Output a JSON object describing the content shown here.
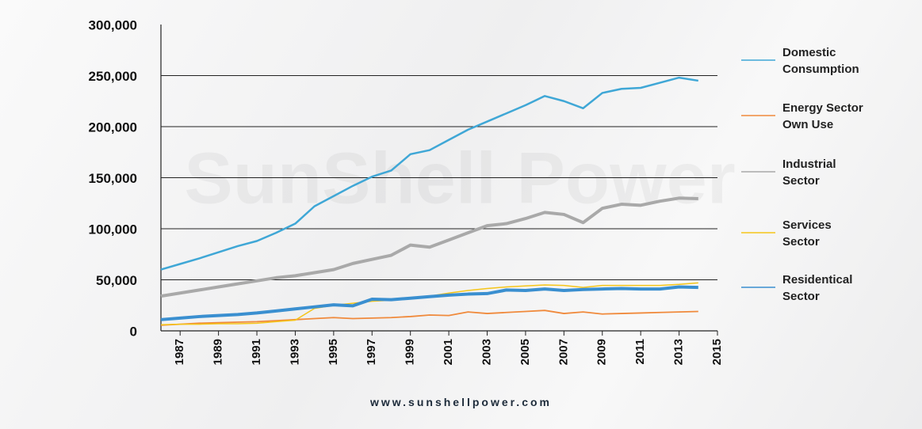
{
  "chart_data": {
    "type": "line",
    "watermark": "SunShell Power",
    "footer": "www.sunshellpower.com",
    "x": [
      1986,
      1987,
      1988,
      1989,
      1990,
      1991,
      1992,
      1993,
      1994,
      1995,
      1996,
      1997,
      1998,
      1999,
      2000,
      2001,
      2002,
      2003,
      2004,
      2005,
      2006,
      2007,
      2008,
      2009,
      2010,
      2011,
      2012,
      2013,
      2014
    ],
    "series": [
      {
        "name": "Domestic Consumption",
        "color": "#3fa7d6",
        "width": 2.5,
        "values": [
          60000,
          65500,
          71000,
          77000,
          83000,
          88000,
          96000,
          105000,
          122000,
          132000,
          142000,
          151000,
          157000,
          173000,
          177000,
          187000,
          197000,
          205000,
          213000,
          221000,
          230000,
          225000,
          218000,
          233000,
          237000,
          238000,
          243000,
          248000,
          245000
        ]
      },
      {
        "name": "Energy Sector Own Use",
        "color": "#f08a3c",
        "width": 1.8,
        "values": [
          5500,
          6500,
          7500,
          8000,
          8500,
          9000,
          10000,
          11000,
          12000,
          13000,
          12000,
          12500,
          13000,
          14000,
          15500,
          15000,
          18500,
          17000,
          18000,
          19000,
          20000,
          17000,
          18500,
          16500,
          17000,
          17500,
          18000,
          18500,
          19000
        ]
      },
      {
        "name": "Industrial Sector",
        "color": "#a9a9a9",
        "width": 4,
        "values": [
          34000,
          37000,
          40000,
          43000,
          46000,
          49000,
          52000,
          54000,
          57000,
          60000,
          66000,
          70000,
          74000,
          84000,
          82000,
          89000,
          96000,
          103000,
          105000,
          110000,
          116000,
          114000,
          106000,
          120000,
          124000,
          123000,
          127000,
          130000,
          129500
        ]
      },
      {
        "name": "Services Sector",
        "color": "#f5c518",
        "width": 1.5,
        "values": [
          6000,
          6500,
          6500,
          7000,
          7000,
          7500,
          9000,
          10500,
          22000,
          25000,
          27000,
          29000,
          30000,
          32000,
          34000,
          37000,
          39500,
          41500,
          43000,
          44000,
          45000,
          44500,
          42500,
          44500,
          44500,
          44500,
          44500,
          45500,
          47000
        ]
      },
      {
        "name": "Residentical Sector",
        "color": "#3a8fd0",
        "width": 4,
        "values": [
          11000,
          12500,
          14000,
          15000,
          16000,
          17500,
          19500,
          21500,
          23500,
          25500,
          24500,
          31000,
          30500,
          32000,
          33500,
          35000,
          36000,
          36500,
          40000,
          39500,
          41000,
          39500,
          40500,
          41000,
          41500,
          41000,
          41000,
          43000,
          42500
        ]
      }
    ],
    "xlim": [
      1986,
      2015
    ],
    "xticks": [
      1987,
      1989,
      1991,
      1993,
      1995,
      1997,
      1999,
      2001,
      2003,
      2005,
      2007,
      2009,
      2011,
      2013,
      2015
    ],
    "ylim": [
      0,
      300000
    ],
    "yticks": [
      0,
      {
        "value": 50000,
        "label": "50,000"
      },
      {
        "value": 100000,
        "label": "100,000"
      },
      {
        "value": 150000,
        "label": "150,000"
      },
      {
        "value": 200000,
        "label": "200,000"
      },
      {
        "value": 250000,
        "label": "250,000"
      },
      {
        "value": 300000,
        "label": "300,000"
      }
    ],
    "grid": true,
    "legend": "right"
  }
}
